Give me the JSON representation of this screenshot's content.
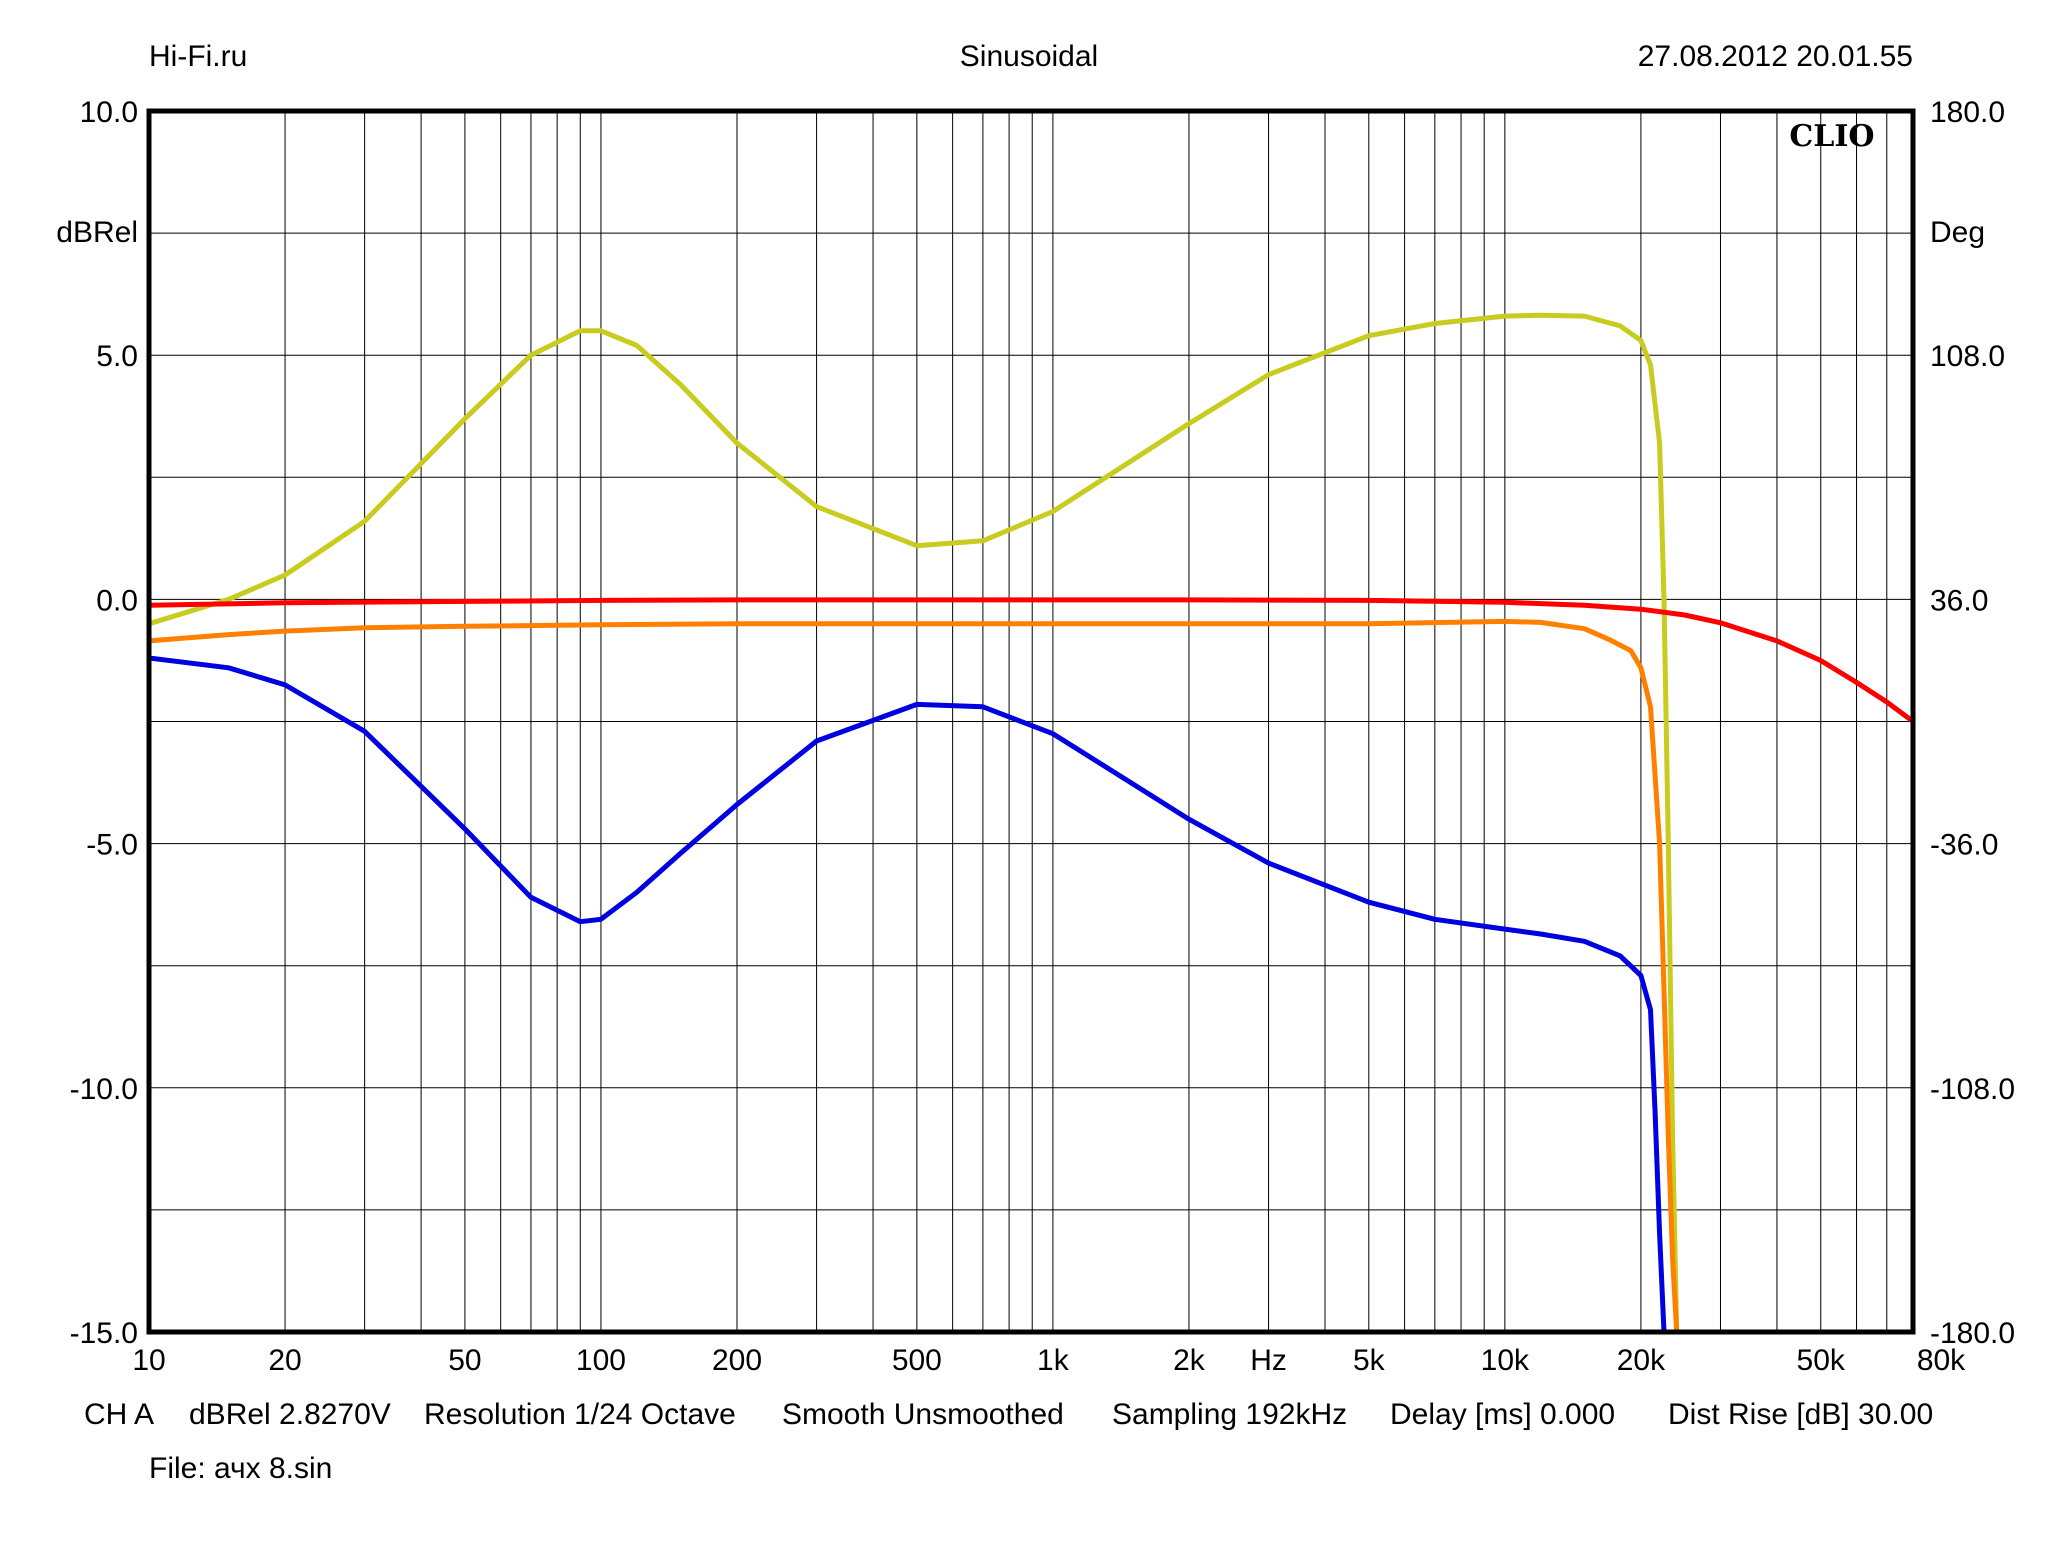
{
  "header": {
    "left": "Hi-Fi.ru",
    "center": "Sinusoidal",
    "right": "27.08.2012 20.01.55"
  },
  "brand_label": "CLIO",
  "footer": {
    "line1": [
      "CH A",
      "dBRel 2.8270V",
      "Resolution 1/24 Octave",
      "Smooth Unsmoothed",
      "Sampling 192kHz",
      "Delay [ms] 0.000",
      "Dist Rise [dB] 30.00"
    ],
    "file": "File: ачх 8.sin"
  },
  "chart_data": {
    "type": "line",
    "title": "Sinusoidal",
    "xlabel": "Hz",
    "ylabel": "dBRel",
    "y2label": "Deg",
    "x_scale": "log",
    "xlim": [
      10,
      80000
    ],
    "ylim": [
      -15,
      10
    ],
    "y2lim": [
      -180,
      180
    ],
    "grid": true,
    "x_ticks": [
      {
        "value": 10,
        "label": "10"
      },
      {
        "value": 20,
        "label": "20"
      },
      {
        "value": 50,
        "label": "50"
      },
      {
        "value": 100,
        "label": "100"
      },
      {
        "value": 200,
        "label": "200"
      },
      {
        "value": 500,
        "label": "500"
      },
      {
        "value": 1000,
        "label": "1k"
      },
      {
        "value": 2000,
        "label": "2k"
      },
      {
        "value": 5000,
        "label": "5k"
      },
      {
        "value": 10000,
        "label": "10k"
      },
      {
        "value": 20000,
        "label": "20k"
      },
      {
        "value": 50000,
        "label": "50k"
      },
      {
        "value": 80000,
        "label": "80k"
      }
    ],
    "x_unit_label": {
      "value": 3000,
      "label": "Hz"
    },
    "y_ticks": [
      {
        "value": 10,
        "label": "10.0"
      },
      {
        "value": 5,
        "label": "5.0"
      },
      {
        "value": 0,
        "label": "0.0"
      },
      {
        "value": -5,
        "label": "-5.0"
      },
      {
        "value": -10,
        "label": "-10.0"
      },
      {
        "value": -15,
        "label": "-15.0"
      }
    ],
    "y2_ticks": [
      {
        "value": 180,
        "label": "180.0"
      },
      {
        "value": 108,
        "label": "108.0"
      },
      {
        "value": 36,
        "label": "36.0"
      },
      {
        "value": -36,
        "label": "-36.0"
      },
      {
        "value": -108,
        "label": "-108.0"
      },
      {
        "value": -180,
        "label": "-180.0"
      }
    ],
    "series": [
      {
        "color": "#e8e800",
        "x": [
          10,
          15,
          20,
          30,
          50,
          70,
          90,
          100,
          120,
          150,
          200,
          300,
          500,
          700,
          1000,
          2000,
          3000,
          5000,
          7000,
          10000,
          12000,
          15000,
          18000,
          20000,
          21000,
          22000,
          22500,
          23000,
          23500,
          24000
        ],
        "y": [
          -0.5,
          0.0,
          0.5,
          1.6,
          3.7,
          5.0,
          5.5,
          5.5,
          5.2,
          4.4,
          3.2,
          1.9,
          1.1,
          1.2,
          1.8,
          3.6,
          4.6,
          5.4,
          5.65,
          5.8,
          5.82,
          5.8,
          5.6,
          5.3,
          4.8,
          3.2,
          0.0,
          -5.0,
          -11.0,
          -15.0
        ],
        "stroke": "#c8cc1e"
      },
      {
        "color": "#ff0000",
        "x": [
          10,
          20,
          50,
          100,
          200,
          500,
          1000,
          2000,
          5000,
          10000,
          15000,
          20000,
          25000,
          30000,
          40000,
          50000,
          60000,
          70000,
          80000
        ],
        "y": [
          -0.12,
          -0.07,
          -0.04,
          -0.02,
          -0.01,
          -0.01,
          -0.01,
          -0.01,
          -0.02,
          -0.06,
          -0.12,
          -0.2,
          -0.32,
          -0.48,
          -0.85,
          -1.25,
          -1.7,
          -2.1,
          -2.5
        ]
      },
      {
        "color": "#ff8000",
        "x": [
          10,
          15,
          20,
          30,
          50,
          100,
          200,
          500,
          1000,
          2000,
          5000,
          10000,
          12000,
          15000,
          17000,
          19000,
          20000,
          21000,
          22000,
          22500,
          23000,
          23500,
          24000
        ],
        "y": [
          -0.85,
          -0.72,
          -0.65,
          -0.58,
          -0.55,
          -0.52,
          -0.5,
          -0.5,
          -0.5,
          -0.5,
          -0.5,
          -0.45,
          -0.47,
          -0.6,
          -0.82,
          -1.05,
          -1.4,
          -2.2,
          -5.0,
          -8.0,
          -11.0,
          -13.5,
          -15.0
        ]
      },
      {
        "color": "#0000e0",
        "x": [
          10,
          15,
          20,
          30,
          50,
          70,
          90,
          100,
          120,
          150,
          200,
          300,
          500,
          700,
          1000,
          2000,
          3000,
          5000,
          7000,
          10000,
          12000,
          15000,
          18000,
          20000,
          21000,
          21500,
          22000,
          22500
        ],
        "y": [
          -1.2,
          -1.4,
          -1.75,
          -2.7,
          -4.7,
          -6.1,
          -6.6,
          -6.55,
          -6.0,
          -5.2,
          -4.2,
          -2.9,
          -2.15,
          -2.2,
          -2.75,
          -4.5,
          -5.4,
          -6.2,
          -6.55,
          -6.75,
          -6.85,
          -7.0,
          -7.3,
          -7.7,
          -8.4,
          -10.5,
          -13.0,
          -15.0
        ]
      }
    ]
  }
}
